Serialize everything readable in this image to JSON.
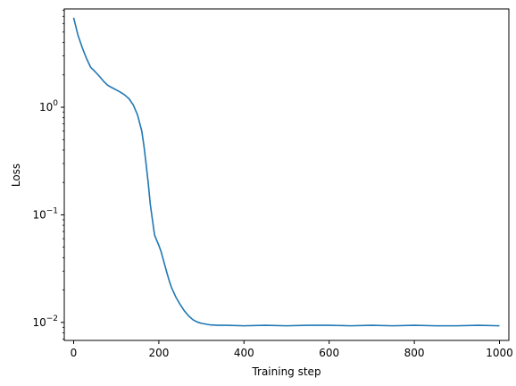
{
  "chart_data": {
    "type": "line",
    "title": "",
    "xlabel": "Training step",
    "ylabel": "Loss",
    "xlim": [
      -22,
      1022
    ],
    "ylim": [
      0.0068,
      8.2
    ],
    "yscale": "log",
    "grid": false,
    "legend": "none",
    "x_ticks": [
      0,
      200,
      400,
      600,
      800,
      1000
    ],
    "y_ticks": [
      {
        "base": "10",
        "exp": "−2",
        "value": 0.01
      },
      {
        "base": "10",
        "exp": "−1",
        "value": 0.1
      },
      {
        "base": "10",
        "exp": "0",
        "value": 1
      }
    ],
    "series": [
      {
        "color": "#1f77b4",
        "x": [
          0,
          10,
          20,
          30,
          40,
          50,
          60,
          70,
          80,
          90,
          100,
          110,
          120,
          130,
          140,
          150,
          160,
          165,
          170,
          175,
          180,
          185,
          190,
          195,
          200,
          205,
          210,
          215,
          220,
          225,
          230,
          240,
          250,
          260,
          270,
          280,
          290,
          300,
          320,
          340,
          360,
          400,
          450,
          500,
          550,
          600,
          650,
          700,
          750,
          800,
          850,
          900,
          950,
          1000
        ],
        "y": [
          6.8,
          4.7,
          3.6,
          2.85,
          2.35,
          2.15,
          1.95,
          1.75,
          1.6,
          1.52,
          1.45,
          1.38,
          1.3,
          1.2,
          1.05,
          0.85,
          0.6,
          0.44,
          0.3,
          0.2,
          0.125,
          0.09,
          0.065,
          0.058,
          0.052,
          0.046,
          0.039,
          0.033,
          0.028,
          0.024,
          0.021,
          0.0172,
          0.0147,
          0.0128,
          0.0115,
          0.0106,
          0.0101,
          0.0098,
          0.0095,
          0.0094,
          0.0094,
          0.0093,
          0.0094,
          0.0093,
          0.0094,
          0.0094,
          0.0093,
          0.0094,
          0.0093,
          0.0094,
          0.0093,
          0.0093,
          0.0094,
          0.0093
        ]
      }
    ]
  }
}
